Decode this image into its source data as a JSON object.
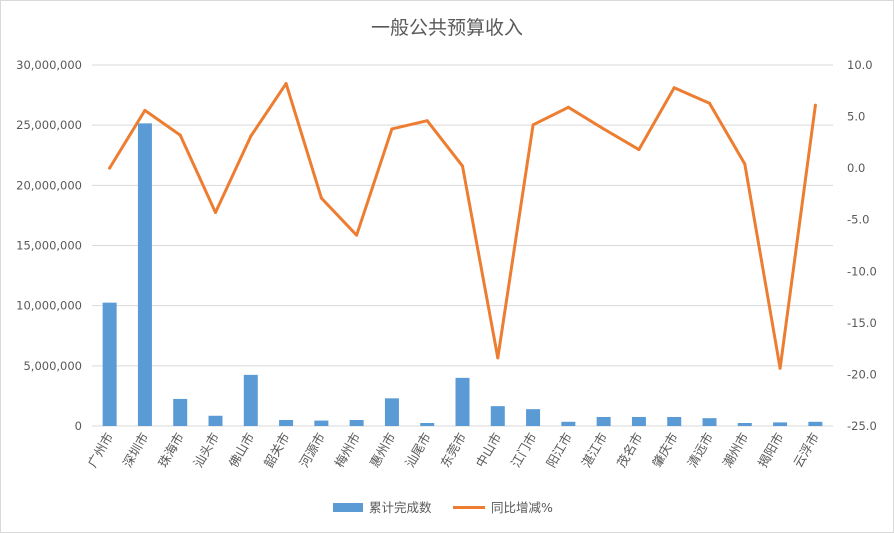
{
  "chart_data": {
    "type": "bar+line",
    "title": "一般公共预算收入",
    "categories": [
      "广州市",
      "深圳市",
      "珠海市",
      "汕头市",
      "佛山市",
      "韶关市",
      "河源市",
      "梅州市",
      "惠州市",
      "汕尾市",
      "东莞市",
      "中山市",
      "江门市",
      "阳江市",
      "湛江市",
      "茂名市",
      "肇庆市",
      "清远市",
      "潮州市",
      "揭阳市",
      "云浮市"
    ],
    "series": [
      {
        "name": "累计完成数",
        "type": "bar",
        "axis": "left",
        "color": "#5b9bd5",
        "values": [
          10250000,
          25150000,
          2250000,
          850000,
          4250000,
          500000,
          450000,
          500000,
          2300000,
          250000,
          4000000,
          1650000,
          1400000,
          350000,
          750000,
          750000,
          750000,
          650000,
          250000,
          300000,
          350000
        ]
      },
      {
        "name": "同比增减%",
        "type": "line",
        "axis": "right",
        "color": "#ed7d31",
        "values": [
          0.0,
          5.6,
          3.2,
          -4.3,
          3.1,
          8.2,
          -2.9,
          -6.5,
          3.8,
          4.6,
          0.2,
          -18.4,
          4.2,
          5.9,
          3.8,
          1.8,
          7.8,
          6.3,
          0.4,
          -19.4,
          6.1
        ]
      }
    ],
    "y_left": {
      "min": 0,
      "max": 30000000,
      "ticks": [
        "0",
        "5,000,000",
        "10,000,000",
        "15,000,000",
        "20,000,000",
        "25,000,000",
        "30,000,000"
      ]
    },
    "y_right": {
      "min": -25,
      "max": 10,
      "ticks": [
        "-25.0",
        "-20.0",
        "-15.0",
        "-10.0",
        "-5.0",
        "0.0",
        "5.0",
        "10.0"
      ]
    },
    "grid": true,
    "legend_position": "bottom"
  }
}
